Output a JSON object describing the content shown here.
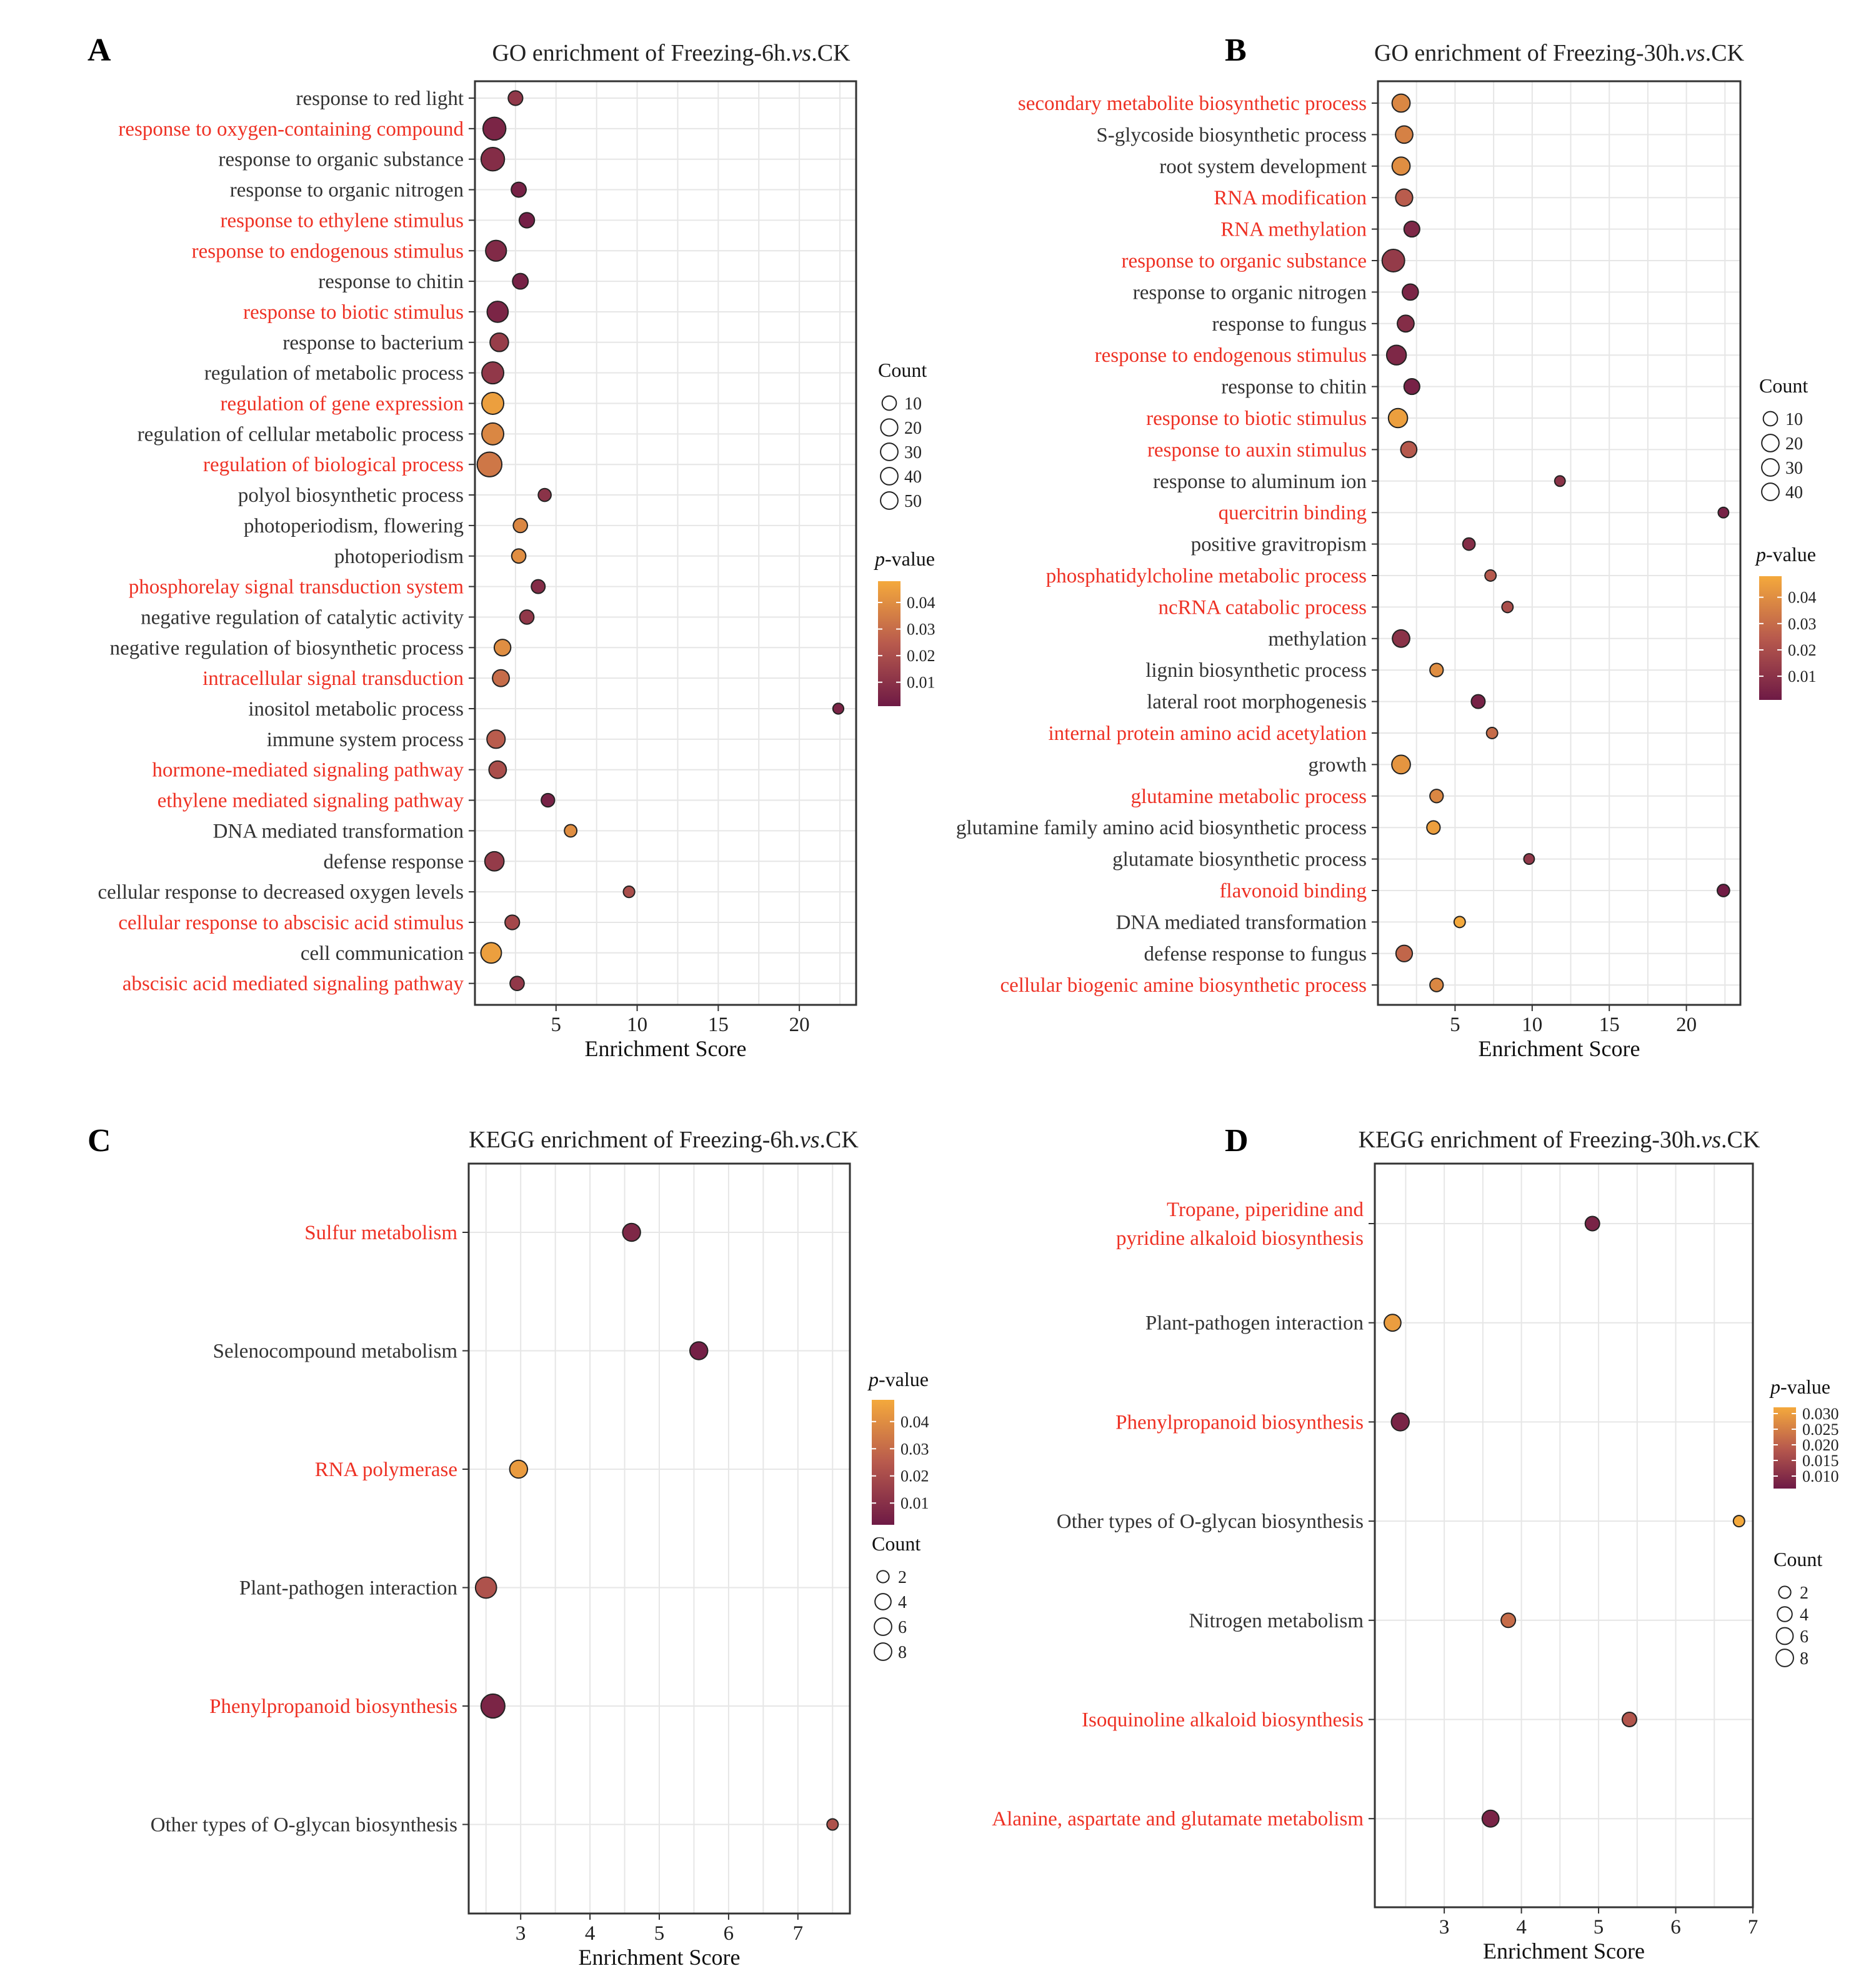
{
  "colors": {
    "low": "#6e1a45",
    "mid": "#b85a4d",
    "high": "#f4a93c",
    "highlight": "#ee3124",
    "normal": "#333333",
    "grid": "#e6e6e6",
    "frame": "#333333"
  },
  "chart_data": [
    {
      "panel": "A",
      "type": "scatter",
      "title": "GO enrichment of Freezing-6h.vs.CK",
      "title_parts": [
        "GO enrichment of Freezing-6h.",
        "vs",
        ".CK"
      ],
      "xlabel": "Enrichment Score",
      "xlim": [
        0,
        23.5
      ],
      "xticks": [
        5,
        10,
        15,
        20
      ],
      "size_legend": {
        "title": "Count",
        "values": [
          10,
          20,
          30,
          40,
          50
        ],
        "labels": [
          "10",
          "20",
          "30",
          "40",
          "50"
        ]
      },
      "color_legend": {
        "title": "p-value",
        "title_parts": [
          "p",
          "-value"
        ],
        "range": [
          0.001,
          0.048
        ],
        "ticks": [
          0.01,
          0.02,
          0.03,
          0.04
        ],
        "labels": [
          "0.01",
          "0.02",
          "0.03",
          "0.04"
        ]
      },
      "terms": [
        {
          "label": "response to red light",
          "x": 2.5,
          "count": 12,
          "p": 0.012,
          "highlight": false
        },
        {
          "label": "response to oxygen-containing compound",
          "x": 1.2,
          "count": 45,
          "p": 0.005,
          "highlight": true
        },
        {
          "label": "response to organic substance",
          "x": 1.1,
          "count": 48,
          "p": 0.008,
          "highlight": false
        },
        {
          "label": "response to organic nitrogen",
          "x": 2.7,
          "count": 13,
          "p": 0.004,
          "highlight": false
        },
        {
          "label": "response to ethylene stimulus",
          "x": 3.2,
          "count": 14,
          "p": 0.003,
          "highlight": true
        },
        {
          "label": "response to endogenous stimulus",
          "x": 1.3,
          "count": 35,
          "p": 0.007,
          "highlight": true
        },
        {
          "label": "response to chitin",
          "x": 2.8,
          "count": 15,
          "p": 0.004,
          "highlight": false
        },
        {
          "label": "response to biotic stimulus",
          "x": 1.4,
          "count": 36,
          "p": 0.005,
          "highlight": true
        },
        {
          "label": "response to bacterium",
          "x": 1.5,
          "count": 25,
          "p": 0.014,
          "highlight": false
        },
        {
          "label": "regulation of metabolic process",
          "x": 1.1,
          "count": 40,
          "p": 0.012,
          "highlight": false
        },
        {
          "label": "regulation of gene expression",
          "x": 1.1,
          "count": 40,
          "p": 0.045,
          "highlight": true
        },
        {
          "label": "regulation of cellular metabolic process",
          "x": 1.1,
          "count": 40,
          "p": 0.038,
          "highlight": false
        },
        {
          "label": "regulation of biological process",
          "x": 0.9,
          "count": 55,
          "p": 0.033,
          "highlight": true
        },
        {
          "label": "polyol biosynthetic process",
          "x": 4.3,
          "count": 8,
          "p": 0.01,
          "highlight": false
        },
        {
          "label": "photoperiodism, flowering",
          "x": 2.8,
          "count": 11,
          "p": 0.038,
          "highlight": false
        },
        {
          "label": "photoperiodism",
          "x": 2.7,
          "count": 11,
          "p": 0.04,
          "highlight": false
        },
        {
          "label": "phosphorelay signal transduction system",
          "x": 3.9,
          "count": 10,
          "p": 0.008,
          "highlight": true
        },
        {
          "label": "negative regulation of catalytic activity",
          "x": 3.2,
          "count": 11,
          "p": 0.012,
          "highlight": false
        },
        {
          "label": "negative regulation of biosynthetic process",
          "x": 1.7,
          "count": 18,
          "p": 0.04,
          "highlight": false
        },
        {
          "label": "intracellular signal transduction",
          "x": 1.6,
          "count": 19,
          "p": 0.03,
          "highlight": true
        },
        {
          "label": "inositol metabolic process",
          "x": 22.4,
          "count": 4,
          "p": 0.005,
          "highlight": false
        },
        {
          "label": "immune system process",
          "x": 1.3,
          "count": 24,
          "p": 0.025,
          "highlight": false
        },
        {
          "label": "hormone-mediated signaling pathway",
          "x": 1.4,
          "count": 21,
          "p": 0.02,
          "highlight": true
        },
        {
          "label": "ethylene mediated signaling pathway",
          "x": 4.5,
          "count": 9,
          "p": 0.004,
          "highlight": true
        },
        {
          "label": "DNA mediated transformation",
          "x": 5.9,
          "count": 7,
          "p": 0.04,
          "highlight": false
        },
        {
          "label": "defense response",
          "x": 1.2,
          "count": 28,
          "p": 0.013,
          "highlight": false
        },
        {
          "label": "cellular response to decreased oxygen levels",
          "x": 9.5,
          "count": 5,
          "p": 0.02,
          "highlight": false
        },
        {
          "label": "cellular response to abscisic acid stimulus",
          "x": 2.3,
          "count": 12,
          "p": 0.018,
          "highlight": true
        },
        {
          "label": "cell communication",
          "x": 1.0,
          "count": 34,
          "p": 0.045,
          "highlight": false
        },
        {
          "label": "abscisic acid mediated signaling pathway",
          "x": 2.6,
          "count": 11,
          "p": 0.012,
          "highlight": true
        }
      ]
    },
    {
      "panel": "B",
      "type": "scatter",
      "title": "GO enrichment of Freezing-30h.vs.CK",
      "title_parts": [
        "GO enrichment of Freezing-30h.",
        "vs",
        ".CK"
      ],
      "xlabel": "Enrichment Score",
      "xlim": [
        0,
        23.5
      ],
      "xticks": [
        5,
        10,
        15,
        20
      ],
      "size_legend": {
        "title": "Count",
        "values": [
          10,
          20,
          30,
          40
        ],
        "labels": [
          "10",
          "20",
          "30",
          "40"
        ]
      },
      "color_legend": {
        "title": "p-value",
        "title_parts": [
          "p",
          "-value"
        ],
        "range": [
          0.001,
          0.048
        ],
        "ticks": [
          0.01,
          0.02,
          0.03,
          0.04
        ],
        "labels": [
          "0.01",
          "0.02",
          "0.03",
          "0.04"
        ]
      },
      "terms": [
        {
          "label": "secondary metabolite biosynthetic process",
          "x": 1.5,
          "count": 22,
          "p": 0.038,
          "highlight": true
        },
        {
          "label": "S-glycoside biosynthetic process",
          "x": 1.7,
          "count": 20,
          "p": 0.036,
          "highlight": false
        },
        {
          "label": "root system development",
          "x": 1.5,
          "count": 22,
          "p": 0.04,
          "highlight": false
        },
        {
          "label": "RNA modification",
          "x": 1.7,
          "count": 19,
          "p": 0.025,
          "highlight": true
        },
        {
          "label": "RNA methylation",
          "x": 2.2,
          "count": 15,
          "p": 0.006,
          "highlight": true
        },
        {
          "label": "response to organic substance",
          "x": 1.0,
          "count": 40,
          "p": 0.013,
          "highlight": true
        },
        {
          "label": "response to organic nitrogen",
          "x": 2.1,
          "count": 16,
          "p": 0.005,
          "highlight": false
        },
        {
          "label": "response to fungus",
          "x": 1.8,
          "count": 18,
          "p": 0.008,
          "highlight": false
        },
        {
          "label": "response to endogenous stimulus",
          "x": 1.2,
          "count": 28,
          "p": 0.006,
          "highlight": true
        },
        {
          "label": "response to chitin",
          "x": 2.2,
          "count": 15,
          "p": 0.004,
          "highlight": false
        },
        {
          "label": "response to biotic stimulus",
          "x": 1.3,
          "count": 26,
          "p": 0.045,
          "highlight": true
        },
        {
          "label": "response to auxin stimulus",
          "x": 2.0,
          "count": 16,
          "p": 0.024,
          "highlight": true
        },
        {
          "label": "response to aluminum ion",
          "x": 11.8,
          "count": 4,
          "p": 0.01,
          "highlight": false
        },
        {
          "label": "quercitrin binding",
          "x": 22.4,
          "count": 4,
          "p": 0.004,
          "highlight": true
        },
        {
          "label": "positive gravitropism",
          "x": 5.9,
          "count": 7,
          "p": 0.008,
          "highlight": false
        },
        {
          "label": "phosphatidylcholine metabolic process",
          "x": 7.3,
          "count": 5,
          "p": 0.024,
          "highlight": true
        },
        {
          "label": "ncRNA catabolic process",
          "x": 8.4,
          "count": 5,
          "p": 0.02,
          "highlight": true
        },
        {
          "label": "methylation",
          "x": 1.5,
          "count": 20,
          "p": 0.01,
          "highlight": false
        },
        {
          "label": "lignin biosynthetic process",
          "x": 3.8,
          "count": 9,
          "p": 0.04,
          "highlight": false
        },
        {
          "label": "lateral root morphogenesis",
          "x": 6.5,
          "count": 10,
          "p": 0.004,
          "highlight": false
        },
        {
          "label": "internal protein amino acid acetylation",
          "x": 7.4,
          "count": 5,
          "p": 0.03,
          "highlight": true
        },
        {
          "label": "growth",
          "x": 1.5,
          "count": 24,
          "p": 0.042,
          "highlight": false
        },
        {
          "label": "glutamine metabolic process",
          "x": 3.8,
          "count": 9,
          "p": 0.038,
          "highlight": true
        },
        {
          "label": "glutamine family amino acid biosynthetic process",
          "x": 3.6,
          "count": 9,
          "p": 0.045,
          "highlight": false
        },
        {
          "label": "glutamate biosynthetic process",
          "x": 9.8,
          "count": 4,
          "p": 0.012,
          "highlight": false
        },
        {
          "label": "flavonoid binding",
          "x": 22.4,
          "count": 7,
          "p": 0.002,
          "highlight": true
        },
        {
          "label": "DNA mediated transformation",
          "x": 5.3,
          "count": 5,
          "p": 0.048,
          "highlight": false
        },
        {
          "label": "defense response to fungus",
          "x": 1.7,
          "count": 17,
          "p": 0.028,
          "highlight": false
        },
        {
          "label": "cellular biogenic amine biosynthetic process",
          "x": 3.8,
          "count": 9,
          "p": 0.038,
          "highlight": true
        }
      ]
    },
    {
      "panel": "C",
      "type": "scatter",
      "title": "KEGG enrichment of Freezing-6h.vs.CK",
      "title_parts": [
        "KEGG enrichment of Freezing-6h.",
        "vs",
        ".CK"
      ],
      "xlabel": "Enrichment Score",
      "xlim": [
        2.25,
        7.75
      ],
      "xticks": [
        3,
        4,
        5,
        6,
        7
      ],
      "size_legend": {
        "title": "Count",
        "values": [
          2,
          4,
          6,
          8
        ],
        "labels": [
          "2",
          "4",
          "6",
          "8"
        ]
      },
      "color_legend": {
        "title": "p-value",
        "title_parts": [
          "p",
          "-value"
        ],
        "range": [
          0.002,
          0.048
        ],
        "ticks": [
          0.01,
          0.02,
          0.03,
          0.04
        ],
        "labels": [
          "0.01",
          "0.02",
          "0.03",
          "0.04"
        ]
      },
      "terms": [
        {
          "label": "Sulfur metabolism",
          "x": 4.6,
          "count": 5,
          "p": 0.007,
          "highlight": true
        },
        {
          "label": "Selenocompound metabolism",
          "x": 5.57,
          "count": 5,
          "p": 0.004,
          "highlight": false
        },
        {
          "label": "RNA polymerase",
          "x": 2.97,
          "count": 5,
          "p": 0.044,
          "highlight": true
        },
        {
          "label": "Plant-pathogen interaction",
          "x": 2.5,
          "count": 7,
          "p": 0.022,
          "highlight": false
        },
        {
          "label": "Phenylpropanoid biosynthesis",
          "x": 2.6,
          "count": 9,
          "p": 0.006,
          "highlight": true
        },
        {
          "label": "Other types of O-glycan biosynthesis",
          "x": 7.5,
          "count": 2,
          "p": 0.022,
          "highlight": false
        }
      ]
    },
    {
      "panel": "D",
      "type": "scatter",
      "title": "KEGG enrichment of Freezing-30h.vs.CK",
      "title_parts": [
        "KEGG enrichment of Freezing-30h.",
        "vs",
        ".CK"
      ],
      "xlabel": "Enrichment Score",
      "xlim": [
        2.1,
        7.0
      ],
      "xticks": [
        3,
        4,
        5,
        6,
        7
      ],
      "size_legend": {
        "title": "Count",
        "values": [
          2,
          4,
          6,
          8
        ],
        "labels": [
          "2",
          "4",
          "6",
          "8"
        ]
      },
      "color_legend": {
        "title": "p-value",
        "title_parts": [
          "p",
          "-value"
        ],
        "range": [
          0.006,
          0.032
        ],
        "ticks": [
          0.01,
          0.015,
          0.02,
          0.025,
          0.03
        ],
        "labels": [
          "0.010",
          "0.015",
          "0.020",
          "0.025",
          "0.030"
        ]
      },
      "terms": [
        {
          "label": "Tropane, piperidine and pyridine alkaloid biosynthesis",
          "lines": [
            "Tropane, piperidine and",
            "pyridine alkaloid biosynthesis"
          ],
          "x": 4.92,
          "count": 4,
          "p": 0.008,
          "highlight": true
        },
        {
          "label": "Plant-pathogen interaction",
          "x": 2.33,
          "count": 6,
          "p": 0.03,
          "highlight": false
        },
        {
          "label": "Phenylpropanoid biosynthesis",
          "x": 2.43,
          "count": 7,
          "p": 0.008,
          "highlight": true
        },
        {
          "label": "Other types of O-glycan biosynthesis",
          "x": 6.82,
          "count": 2,
          "p": 0.032,
          "highlight": false
        },
        {
          "label": "Nitrogen metabolism",
          "x": 3.83,
          "count": 4,
          "p": 0.022,
          "highlight": false
        },
        {
          "label": "Isoquinoline alkaloid biosynthesis",
          "x": 5.4,
          "count": 4,
          "p": 0.018,
          "highlight": true
        },
        {
          "label": "Alanine, aspartate and glutamate metabolism",
          "x": 3.6,
          "count": 6,
          "p": 0.008,
          "highlight": true
        }
      ]
    }
  ]
}
